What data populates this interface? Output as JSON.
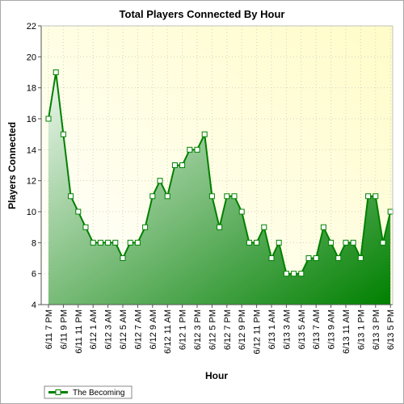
{
  "chart_data": {
    "type": "area",
    "title": "Total Players Connected By Hour",
    "xlabel": "Hour",
    "ylabel": "Players Connected",
    "ylim": [
      4,
      22
    ],
    "yticks": [
      "4",
      "6",
      "8",
      "10",
      "12",
      "14",
      "16",
      "18",
      "20",
      "22"
    ],
    "x_tick_labels": [
      "6/11 7 PM",
      "6/11 9 PM",
      "6/11 11 PM",
      "6/12 1 AM",
      "6/12 3 AM",
      "6/12 5 AM",
      "6/12 7 AM",
      "6/12 9 AM",
      "6/12 11 AM",
      "6/12 1 PM",
      "6/12 3 PM",
      "6/12 5 PM",
      "6/12 7 PM",
      "6/12 9 PM",
      "6/12 11 PM",
      "6/13 1 AM",
      "6/13 3 AM",
      "6/13 5 AM",
      "6/13 7 AM",
      "6/13 9 AM",
      "6/13 11 AM",
      "6/13 1 PM",
      "6/13 3 PM",
      "6/13 5 PM"
    ],
    "grid": true,
    "legend_position": "bottom-left",
    "series": [
      {
        "name": "The Becoming",
        "color": "#008000",
        "values": [
          16,
          19,
          15,
          11,
          10,
          9,
          8,
          8,
          8,
          8,
          7,
          8,
          8,
          9,
          11,
          12,
          11,
          13,
          13,
          14,
          14,
          15,
          11,
          9,
          11,
          11,
          10,
          8,
          8,
          9,
          7,
          8,
          6,
          6,
          6,
          7,
          7,
          9,
          8,
          7,
          8,
          8,
          7,
          11,
          11,
          8,
          10
        ]
      }
    ]
  }
}
